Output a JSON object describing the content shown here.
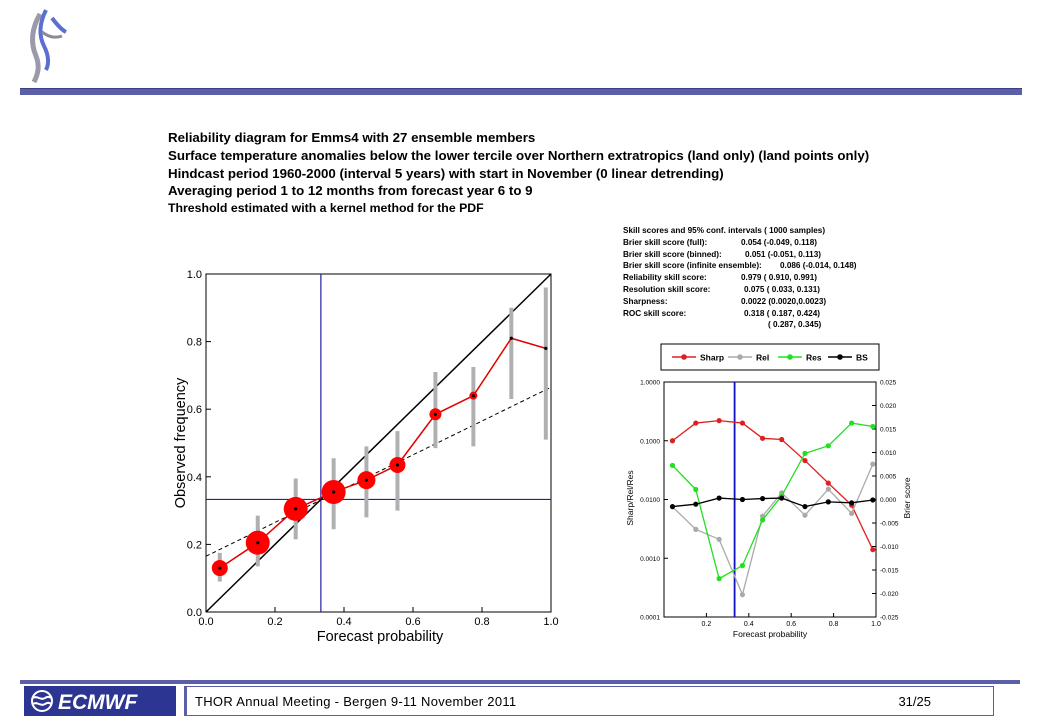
{
  "titles": [
    "Reliability diagram for Emms4 with 27 ensemble members",
    "Surface temperature anomalies below the lower tercile over Northern extratropics (land only) (land points only)",
    "Hindcast period 1960-2000 (interval 5 years) with start in November (0 linear detrending)",
    "Averaging period 1 to 12 months from forecast year 6 to 9",
    "Threshold estimated with a kernel method for the PDF"
  ],
  "skill_scores": {
    "header": "Skill scores and 95% conf. intervals ( 1000 samples)",
    "rows": [
      {
        "label": "Brier skill score (full):",
        "value": "0.054 (-0.049, 0.118)"
      },
      {
        "label": "Brier skill score (binned):",
        "value": "0.051 (-0.051, 0.113)"
      },
      {
        "label": "Brier skill score (infinite ensemble):",
        "value": "0.086 (-0.014, 0.148)"
      },
      {
        "label": "Reliability skill score:",
        "value": "0.979 ( 0.910, 0.991)"
      },
      {
        "label": "Resolution skill score:",
        "value": "0.075 ( 0.033, 0.131)"
      },
      {
        "label": "Sharpness:",
        "value": "0.0022 (0.0020,0.0023)"
      },
      {
        "label": "ROC skill score:",
        "value": "0.318 ( 0.187, 0.424)"
      },
      {
        "label": "",
        "value": "( 0.287, 0.345)"
      }
    ]
  },
  "footer": {
    "text": "THOR Annual Meeting - Bergen  9-11 November 2011",
    "page": "31/25",
    "logo": "ECMWF"
  },
  "colors": {
    "accent": "#5b5fa8",
    "reliability": "#e00000",
    "marker": "#ff0000",
    "errorbar": "#b0b0b0",
    "reference": "#2020a0",
    "sharp": "#e02020",
    "rel": "#aaaaaa",
    "res": "#20e020",
    "bs": "#000000"
  },
  "chart_data": [
    {
      "type": "scatter",
      "xlabel": "Forecast probability",
      "ylabel": "Observed frequency",
      "xlim": [
        0,
        1
      ],
      "ylim": [
        0,
        1
      ],
      "xticks": [
        "0.0",
        "0.2",
        "0.4",
        "0.6",
        "0.8",
        "1.0"
      ],
      "yticks": [
        "0.0",
        "0.2",
        "0.4",
        "0.6",
        "0.8",
        "1.0"
      ],
      "x": [
        0.04,
        0.15,
        0.26,
        0.37,
        0.465,
        0.555,
        0.665,
        0.775,
        0.885,
        0.985
      ],
      "y": [
        0.13,
        0.205,
        0.305,
        0.355,
        0.39,
        0.435,
        0.585,
        0.64,
        0.81,
        0.78
      ],
      "ci_low": [
        0.09,
        0.135,
        0.215,
        0.245,
        0.28,
        0.3,
        0.485,
        0.49,
        0.63,
        0.51
      ],
      "ci_high": [
        0.175,
        0.285,
        0.395,
        0.455,
        0.49,
        0.535,
        0.71,
        0.725,
        0.9,
        0.96
      ],
      "marker_size": [
        8,
        12,
        12,
        12,
        9,
        8,
        6,
        4,
        1,
        1
      ],
      "climatology": 0.333,
      "fit_line": [
        [
          0,
          0.165
        ],
        [
          1,
          0.665
        ]
      ]
    },
    {
      "type": "line",
      "xlabel": "Forecast probability",
      "ylabel": "Sharp/Rel/Res",
      "y2label": "Brier score",
      "xlim": [
        0,
        1
      ],
      "ylim": [
        0.0001,
        1
      ],
      "log_y": true,
      "y2lim": [
        -0.025,
        0.025
      ],
      "xticks": [
        "0.2",
        "0.4",
        "0.6",
        "0.8",
        "1.0"
      ],
      "yticks": [
        "0.0001",
        "0.0010",
        "0.0100",
        "0.1000",
        "1.0000"
      ],
      "y2ticks": [
        "-0.025",
        "-0.020",
        "-0.015",
        "-0.010",
        "-0.005",
        "0.000",
        "0.005",
        "0.010",
        "0.015",
        "0.020",
        "0.025"
      ],
      "vline": 0.333,
      "x": [
        0.04,
        0.15,
        0.26,
        0.37,
        0.465,
        0.555,
        0.665,
        0.775,
        0.885,
        0.985
      ],
      "series": [
        {
          "name": "Sharp",
          "axis": "left",
          "values": [
            0.1,
            0.2,
            0.22,
            0.2,
            0.11,
            0.105,
            0.046,
            0.019,
            0.008,
            0.0014
          ]
        },
        {
          "name": "Rel",
          "axis": "left",
          "values": [
            0.0075,
            0.0031,
            0.0021,
            0.00024,
            0.0052,
            0.013,
            0.0054,
            0.015,
            0.0058,
            0.04
          ]
        },
        {
          "name": "Res",
          "axis": "left",
          "values": [
            0.038,
            0.0148,
            0.00045,
            0.00075,
            0.0045,
            0.0115,
            0.061,
            0.082,
            0.2,
            0.175
          ]
        },
        {
          "name": "BS",
          "axis": "right",
          "values": [
            -0.0015,
            -0.001,
            0.0003,
            0.0,
            0.0002,
            0.0003,
            -0.0015,
            -0.0005,
            -0.0007,
            -0.0001
          ]
        }
      ]
    }
  ]
}
